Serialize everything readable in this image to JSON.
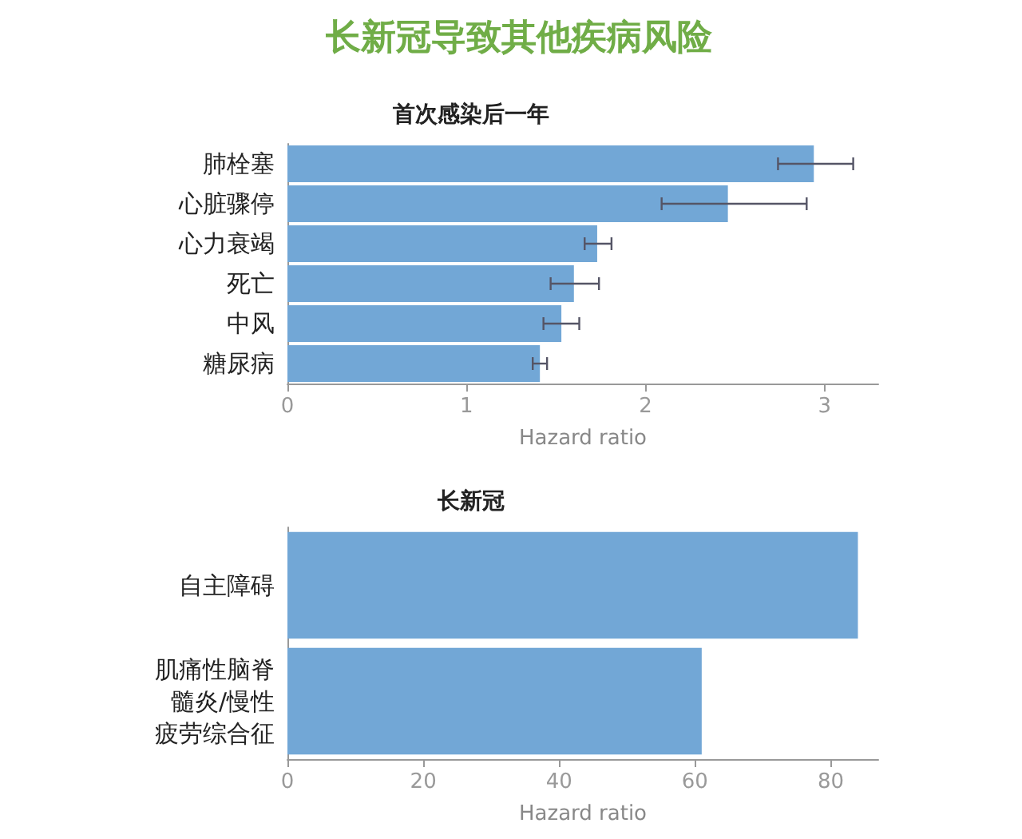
{
  "chart_data": [
    {
      "type": "bar",
      "title": "长新冠导致其他疾病风险",
      "subtitle": "首次感染后一年",
      "xlabel": "Hazard ratio",
      "orientation": "horizontal",
      "categories": [
        "肺栓塞",
        "心脏骤停",
        "心力衰竭",
        "死亡",
        "中风",
        "糖尿病"
      ],
      "values": [
        2.94,
        2.46,
        1.73,
        1.6,
        1.53,
        1.41
      ],
      "errors": [
        [
          2.74,
          3.16
        ],
        [
          2.09,
          2.9
        ],
        [
          1.66,
          1.81
        ],
        [
          1.47,
          1.74
        ],
        [
          1.43,
          1.63
        ],
        [
          1.37,
          1.45
        ]
      ],
      "color": "#72a7d6",
      "xlim": [
        0,
        3.3
      ],
      "xticks": [
        0,
        1,
        2,
        3
      ],
      "grid": false
    },
    {
      "type": "bar",
      "title": "长新冠",
      "xlabel": "Hazard ratio",
      "orientation": "horizontal",
      "categories": [
        "自主障碍",
        "肌痛性脑脊髓炎/慢性疲劳综合征"
      ],
      "values": [
        84,
        61
      ],
      "color": "#72a7d6",
      "xlim": [
        0,
        87
      ],
      "xticks": [
        0,
        20,
        40,
        60,
        80
      ],
      "grid": false
    }
  ]
}
